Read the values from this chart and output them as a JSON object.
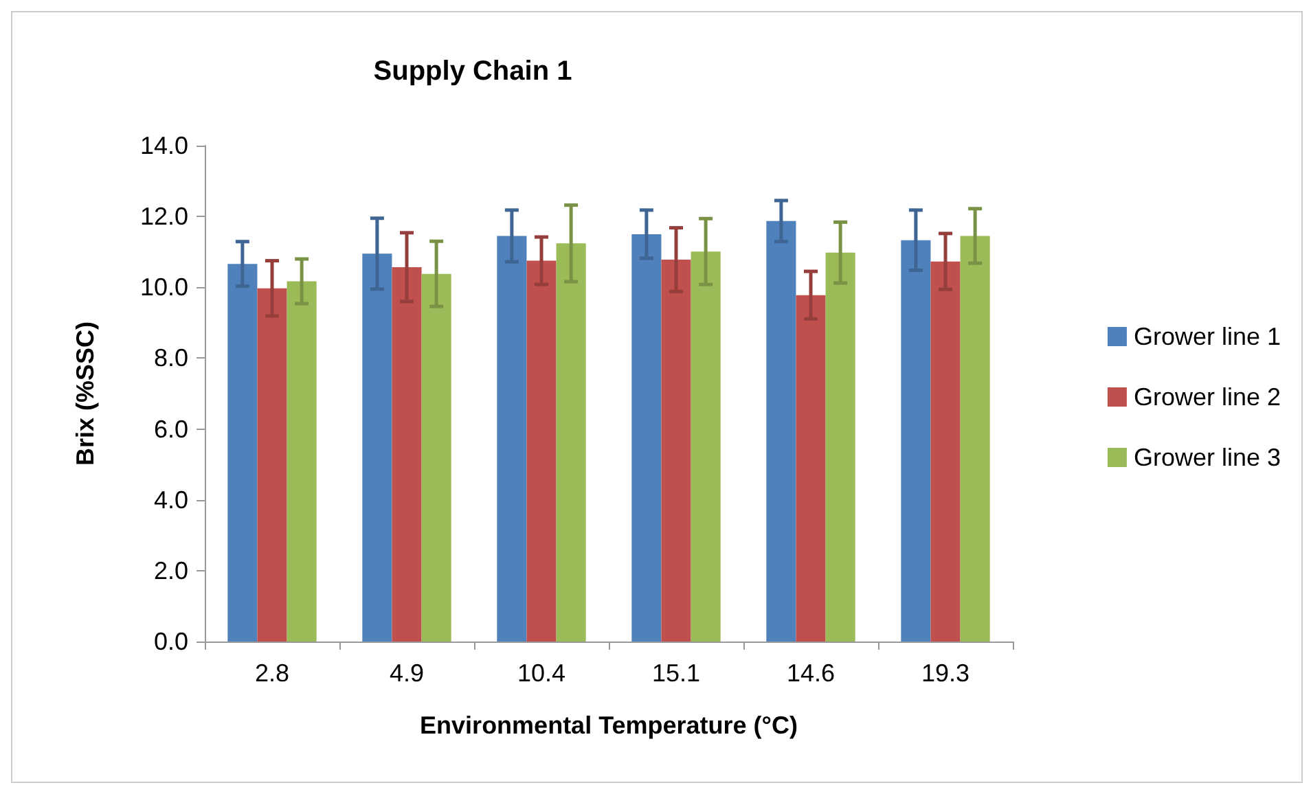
{
  "chart_data": {
    "type": "bar",
    "title": "Supply Chain 1",
    "xlabel": "Environmental Temperature (°C)",
    "ylabel": "Brix (%SSC)",
    "categories": [
      "2.8",
      "4.9",
      "10.4",
      "15.1",
      "14.6",
      "19.3"
    ],
    "series": [
      {
        "name": "Grower line 1",
        "color": "#4f81bd",
        "values": [
          10.66,
          10.95,
          11.45,
          11.5,
          11.87,
          11.33
        ],
        "errors": [
          0.63,
          1.0,
          0.73,
          0.68,
          0.58,
          0.85
        ]
      },
      {
        "name": "Grower line 2",
        "color": "#c0504d",
        "values": [
          9.97,
          10.57,
          10.75,
          10.78,
          9.78,
          10.73
        ],
        "errors": [
          0.78,
          0.97,
          0.67,
          0.9,
          0.67,
          0.79
        ]
      },
      {
        "name": "Grower line 3",
        "color": "#9bbb59",
        "values": [
          10.17,
          10.38,
          11.24,
          11.01,
          10.98,
          11.45
        ],
        "errors": [
          0.63,
          0.92,
          1.08,
          0.93,
          0.86,
          0.77
        ]
      }
    ],
    "ylim": [
      0,
      14
    ],
    "yticks": [
      {
        "value": 0,
        "label": "0.0"
      },
      {
        "value": 2,
        "label": "2.0"
      },
      {
        "value": 4,
        "label": "4.0"
      },
      {
        "value": 6,
        "label": "6.0"
      },
      {
        "value": 8,
        "label": "8.0"
      },
      {
        "value": 10,
        "label": "10.0"
      },
      {
        "value": 12,
        "label": "12.0"
      },
      {
        "value": 14,
        "label": "14.0"
      }
    ],
    "grid": false,
    "legend": "right"
  }
}
